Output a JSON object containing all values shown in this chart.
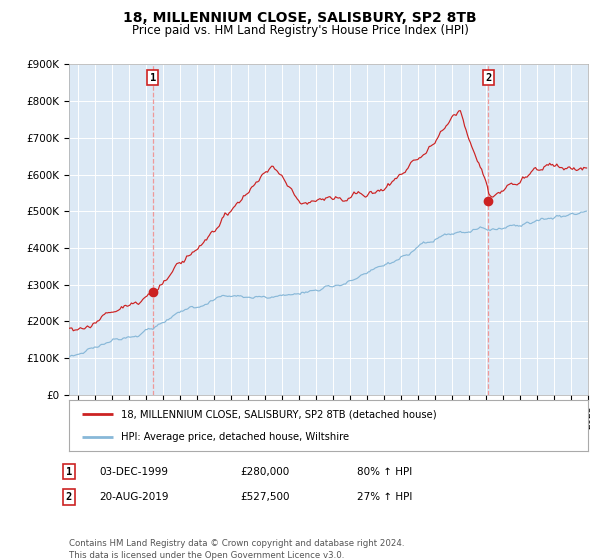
{
  "title": "18, MILLENNIUM CLOSE, SALISBURY, SP2 8TB",
  "subtitle": "Price paid vs. HM Land Registry's House Price Index (HPI)",
  "title_fontsize": 10,
  "subtitle_fontsize": 8.5,
  "bg_color": "#dce9f5",
  "grid_color": "#ffffff",
  "red_line_color": "#cc2222",
  "blue_line_color": "#88b8d8",
  "marker_color": "#cc2222",
  "dashed_line_color": "#ee9999",
  "ylim": [
    0,
    900000
  ],
  "yticks": [
    0,
    100000,
    200000,
    300000,
    400000,
    500000,
    600000,
    700000,
    800000,
    900000
  ],
  "ytick_labels": [
    "£0",
    "£100K",
    "£200K",
    "£300K",
    "£400K",
    "£500K",
    "£600K",
    "£700K",
    "£800K",
    "£900K"
  ],
  "sale1_price": 280000,
  "sale1_label": "1",
  "sale1_x": 1999.92,
  "sale2_price": 527500,
  "sale2_label": "2",
  "sale2_x": 2019.64,
  "legend_line1": "18, MILLENNIUM CLOSE, SALISBURY, SP2 8TB (detached house)",
  "legend_line2": "HPI: Average price, detached house, Wiltshire",
  "table_row1": [
    "1",
    "03-DEC-1999",
    "£280,000",
    "80% ↑ HPI"
  ],
  "table_row2": [
    "2",
    "20-AUG-2019",
    "£527,500",
    "27% ↑ HPI"
  ],
  "footer": "Contains HM Land Registry data © Crown copyright and database right 2024.\nThis data is licensed under the Open Government Licence v3.0.",
  "xmin": 1995.0,
  "xmax": 2025.5
}
